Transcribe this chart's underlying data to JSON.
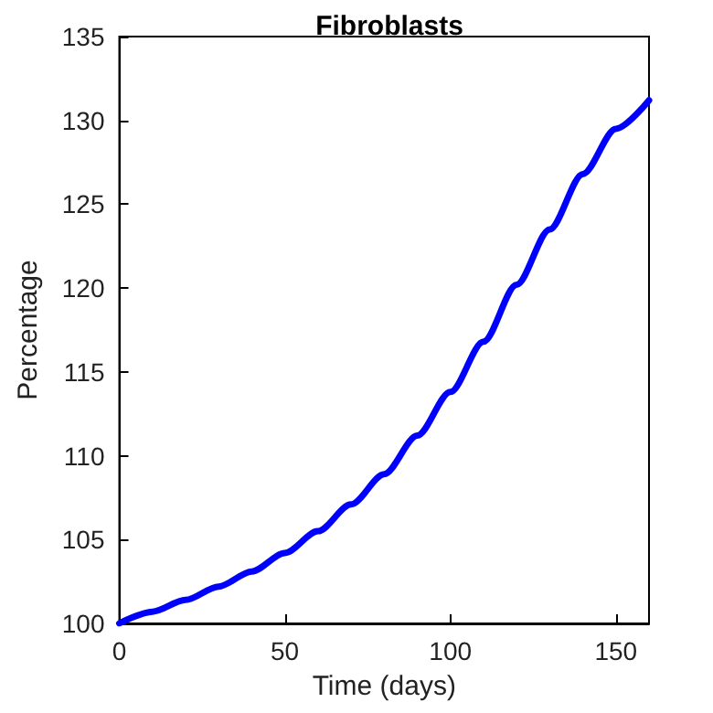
{
  "chart_data": {
    "type": "line",
    "title": "Fibroblasts",
    "xlabel": "Time (days)",
    "ylabel": "Percentage",
    "x": [
      0,
      10,
      20,
      30,
      40,
      50,
      60,
      70,
      80,
      90,
      100,
      110,
      120,
      130,
      140,
      150,
      160
    ],
    "series": [
      {
        "color": "#0000ff",
        "values": [
          100,
          100.7,
          101.4,
          102.2,
          103.1,
          104.2,
          105.5,
          107.1,
          108.9,
          111.2,
          113.8,
          116.8,
          120.2,
          123.5,
          126.8,
          129.5,
          131.2
        ]
      }
    ],
    "xlim": [
      0,
      160
    ],
    "xticks": [
      0,
      50,
      100,
      150
    ],
    "ylim": [
      100,
      135
    ],
    "yticks": [
      100,
      105,
      110,
      115,
      120,
      125,
      130,
      135
    ],
    "marker": "none",
    "line_style": "solid"
  }
}
